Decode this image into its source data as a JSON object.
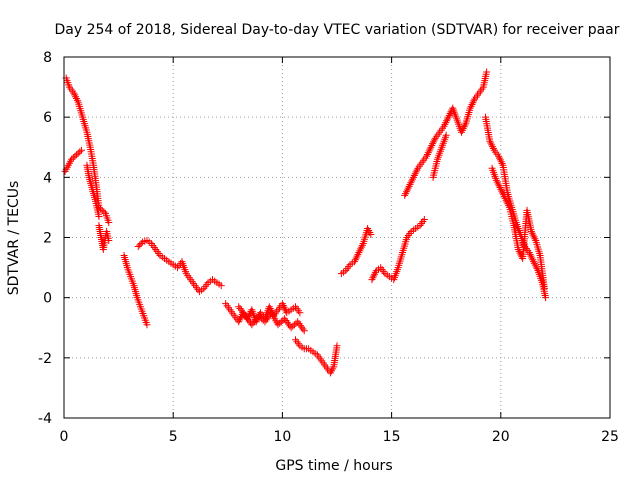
{
  "chart_data": {
    "type": "scatter",
    "title": "Day 254 of 2018, Sidereal Day-to-day VTEC variation (SDTVAR) for receiver paar",
    "xlabel": "GPS time / hours",
    "ylabel": "SDTVAR / TECUs",
    "xlim": [
      0,
      25
    ],
    "ylim": [
      -4,
      8
    ],
    "xticks": [
      0,
      5,
      10,
      15,
      20,
      25
    ],
    "yticks": [
      -4,
      -2,
      0,
      2,
      4,
      6,
      8
    ],
    "grid": true,
    "marker": "+",
    "colors": {
      "points": "#ff0000",
      "grid": "#a0a0a0",
      "axes": "#000000"
    },
    "series": [
      {
        "name": "SDTVAR",
        "segments": [
          {
            "x": [
              0.1,
              0.25,
              0.45,
              0.65,
              0.85,
              1.05,
              1.2,
              1.35,
              1.5,
              1.6,
              1.75,
              1.9,
              2.05
            ],
            "y": [
              7.3,
              7.0,
              6.8,
              6.5,
              6.0,
              5.5,
              5.0,
              4.4,
              3.6,
              3.0,
              2.9,
              2.8,
              2.5
            ]
          },
          {
            "x": [
              0.05,
              0.2,
              0.35,
              0.5,
              0.65,
              0.8
            ],
            "y": [
              4.2,
              4.4,
              4.6,
              4.7,
              4.8,
              4.9
            ]
          },
          {
            "x": [
              1.05,
              1.15,
              1.3,
              1.45,
              1.6
            ],
            "y": [
              4.4,
              4.0,
              3.6,
              3.2,
              2.7
            ]
          },
          {
            "x": [
              1.6,
              1.7,
              1.8,
              1.95,
              2.05
            ],
            "y": [
              2.4,
              2.0,
              1.6,
              2.2,
              1.9
            ]
          },
          {
            "x": [
              2.75,
              2.9,
              3.05,
              3.2,
              3.35,
              3.5,
              3.65,
              3.8
            ],
            "y": [
              1.4,
              1.0,
              0.7,
              0.4,
              0.0,
              -0.3,
              -0.6,
              -0.9
            ]
          },
          {
            "x": [
              3.4,
              3.6,
              3.8,
              4.0,
              4.2,
              4.4,
              4.6,
              4.8,
              5.0,
              5.2,
              5.4,
              5.6,
              5.8,
              6.0,
              6.2,
              6.4,
              6.6,
              6.8,
              7.0,
              7.2
            ],
            "y": [
              1.7,
              1.85,
              1.9,
              1.8,
              1.6,
              1.4,
              1.3,
              1.2,
              1.1,
              1.0,
              1.2,
              0.8,
              0.6,
              0.4,
              0.2,
              0.3,
              0.5,
              0.6,
              0.5,
              0.4
            ]
          },
          {
            "x": [
              7.4,
              7.6,
              7.8,
              8.0,
              8.2,
              8.4,
              8.6,
              8.8,
              9.0,
              9.2,
              9.4,
              9.6,
              9.8,
              10.0,
              10.2,
              10.4,
              10.6,
              10.8
            ],
            "y": [
              -0.2,
              -0.4,
              -0.6,
              -0.8,
              -0.5,
              -0.7,
              -0.4,
              -0.8,
              -0.5,
              -0.7,
              -0.3,
              -0.6,
              -0.4,
              -0.2,
              -0.5,
              -0.4,
              -0.3,
              -0.5
            ]
          },
          {
            "x": [
              8.0,
              8.3,
              8.6,
              8.9,
              9.2,
              9.5,
              9.8,
              10.1,
              10.4,
              10.7,
              11.0
            ],
            "y": [
              -0.3,
              -0.6,
              -0.9,
              -0.6,
              -0.8,
              -0.5,
              -0.9,
              -0.7,
              -1.0,
              -0.8,
              -1.1
            ]
          },
          {
            "x": [
              10.6,
              10.8,
              11.0,
              11.2,
              11.4,
              11.6,
              11.8,
              12.0,
              12.2,
              12.35,
              12.5
            ],
            "y": [
              -1.4,
              -1.6,
              -1.7,
              -1.7,
              -1.8,
              -1.9,
              -2.1,
              -2.3,
              -2.5,
              -2.3,
              -1.6
            ]
          },
          {
            "x": [
              12.7,
              12.9,
              13.1,
              13.3,
              13.5,
              13.7,
              13.9,
              14.05
            ],
            "y": [
              0.8,
              0.9,
              1.1,
              1.2,
              1.5,
              1.8,
              2.3,
              2.1
            ]
          },
          {
            "x": [
              14.1,
              14.3,
              14.5,
              14.7,
              14.9,
              15.1,
              15.3,
              15.5,
              15.7,
              15.9,
              16.1,
              16.3,
              16.5
            ],
            "y": [
              0.6,
              0.9,
              1.0,
              0.8,
              0.7,
              0.6,
              1.0,
              1.5,
              2.0,
              2.2,
              2.3,
              2.4,
              2.6
            ]
          },
          {
            "x": [
              15.6,
              15.8,
              16.0,
              16.2,
              16.4,
              16.6,
              16.8,
              17.0,
              17.2,
              17.4,
              17.6,
              17.8,
              18.0,
              18.2,
              18.4,
              18.6,
              18.8,
              19.0,
              19.2,
              19.35
            ],
            "y": [
              3.4,
              3.7,
              4.0,
              4.3,
              4.5,
              4.7,
              5.0,
              5.3,
              5.5,
              5.7,
              6.0,
              6.3,
              5.9,
              5.5,
              5.8,
              6.3,
              6.6,
              6.8,
              7.0,
              7.5
            ]
          },
          {
            "x": [
              16.9,
              17.1,
              17.3,
              17.5
            ],
            "y": [
              4.0,
              4.6,
              5.0,
              5.4
            ]
          },
          {
            "x": [
              19.3,
              19.5,
              19.7,
              19.9,
              20.1,
              20.3,
              20.5,
              20.7,
              20.9,
              21.1,
              21.3,
              21.5,
              21.7,
              21.9,
              22.05
            ],
            "y": [
              6.0,
              5.2,
              4.9,
              4.7,
              4.4,
              3.5,
              3.0,
              2.5,
              2.1,
              1.7,
              1.5,
              1.2,
              0.9,
              0.5,
              0.0
            ]
          },
          {
            "x": [
              19.6,
              19.8,
              20.0,
              20.2,
              20.4,
              20.6,
              20.8,
              21.0,
              21.2,
              21.4,
              21.6,
              21.8,
              22.0
            ],
            "y": [
              4.3,
              3.9,
              3.6,
              3.3,
              3.0,
              2.4,
              1.6,
              1.3,
              2.9,
              2.2,
              1.9,
              1.4,
              0.3
            ]
          }
        ]
      }
    ]
  }
}
